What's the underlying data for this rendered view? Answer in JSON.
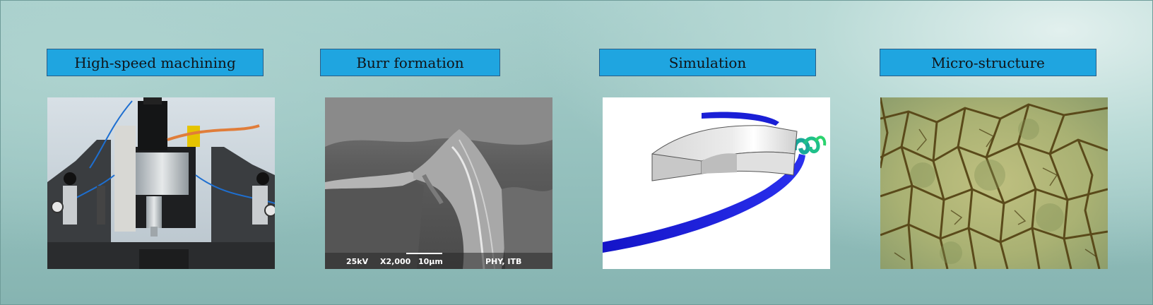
{
  "panels": [
    {
      "title": "High-speed machining",
      "image": "cnc-spindle-photo"
    },
    {
      "title": "Burr formation",
      "image": "sem-micrograph"
    },
    {
      "title": "Simulation",
      "image": "fem-chip-simulation"
    },
    {
      "title": "Micro-structure",
      "image": "micrograph-grains"
    }
  ],
  "sem": {
    "voltage": "25kV",
    "magnification": "X2,000",
    "scale": "10µm",
    "lab": "PHY, ITB"
  },
  "colors": {
    "label_fill": "#1fa5e0",
    "label_border": "#2a5d87",
    "chip_blue": "#1a1fd6"
  }
}
